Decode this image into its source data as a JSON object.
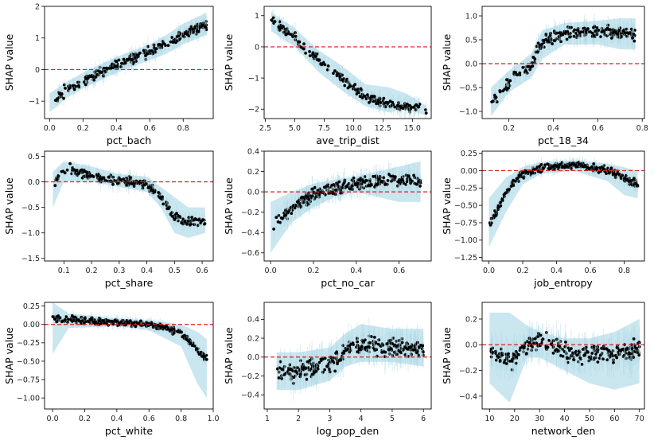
{
  "figure": {
    "ylabel_common": "SHAP value"
  },
  "chart_data": [
    {
      "type": "scatter",
      "xlabel": "pct_bach",
      "ylabel": "SHAP value",
      "xlim": [
        -0.03,
        0.98
      ],
      "ylim": [
        -1.55,
        2.0
      ],
      "xticks": [
        {
          "v": 0.0,
          "t": "0.0"
        },
        {
          "v": 0.2,
          "t": "0.2"
        },
        {
          "v": 0.4,
          "t": "0.4"
        },
        {
          "v": 0.6,
          "t": "0.6"
        },
        {
          "v": 0.8,
          "t": "0.8"
        }
      ],
      "yticks": [
        {
          "v": -1,
          "t": "−1"
        },
        {
          "v": 0,
          "t": "0"
        },
        {
          "v": 1,
          "t": "1"
        },
        {
          "v": 2,
          "t": "2"
        }
      ],
      "reference_y": 0,
      "trend": [
        [
          0.0,
          -1.05
        ],
        [
          0.1,
          -0.65
        ],
        [
          0.2,
          -0.35
        ],
        [
          0.3,
          -0.1
        ],
        [
          0.4,
          0.15
        ],
        [
          0.5,
          0.35
        ],
        [
          0.6,
          0.55
        ],
        [
          0.7,
          0.8
        ],
        [
          0.8,
          1.1
        ],
        [
          0.93,
          1.4
        ]
      ],
      "band": [
        [
          0.0,
          -1.35,
          -0.75
        ],
        [
          0.1,
          -0.9,
          -0.4
        ],
        [
          0.2,
          -0.6,
          -0.1
        ],
        [
          0.3,
          -0.35,
          0.15
        ],
        [
          0.4,
          -0.1,
          0.4
        ],
        [
          0.5,
          0.1,
          0.6
        ],
        [
          0.6,
          0.3,
          0.8
        ],
        [
          0.7,
          0.5,
          1.1
        ],
        [
          0.8,
          0.8,
          1.45
        ],
        [
          0.94,
          1.1,
          1.8
        ]
      ],
      "spread": 0.15,
      "n": 260,
      "seed": 11
    },
    {
      "type": "scatter",
      "xlabel": "ave_trip_dist",
      "ylabel": "SHAP value",
      "xlim": [
        2.4,
        16.6
      ],
      "ylim": [
        -2.3,
        1.3
      ],
      "xticks": [
        {
          "v": 2.5,
          "t": "2.5"
        },
        {
          "v": 5.0,
          "t": "5.0"
        },
        {
          "v": 7.5,
          "t": "7.5"
        },
        {
          "v": 10.0,
          "t": "10.0"
        },
        {
          "v": 12.5,
          "t": "12.5"
        },
        {
          "v": 15.0,
          "t": "15.0"
        }
      ],
      "yticks": [
        {
          "v": -2,
          "t": "−2"
        },
        {
          "v": -1,
          "t": "−1"
        },
        {
          "v": 0,
          "t": "0"
        },
        {
          "v": 1,
          "t": "1"
        }
      ],
      "reference_y": 0,
      "trend": [
        [
          3.0,
          0.8
        ],
        [
          4.0,
          0.6
        ],
        [
          5.0,
          0.3
        ],
        [
          6.0,
          -0.1
        ],
        [
          7.0,
          -0.4
        ],
        [
          8.0,
          -0.7
        ],
        [
          9.0,
          -1.0
        ],
        [
          10.0,
          -1.3
        ],
        [
          11.0,
          -1.6
        ],
        [
          12.5,
          -1.8
        ],
        [
          14.0,
          -1.9
        ],
        [
          16.2,
          -2.0
        ]
      ],
      "band": [
        [
          3.0,
          0.5,
          1.1
        ],
        [
          5.0,
          0.0,
          0.6
        ],
        [
          7.0,
          -0.8,
          -0.1
        ],
        [
          9.0,
          -1.4,
          -0.6
        ],
        [
          11.0,
          -1.9,
          -1.2
        ],
        [
          13.0,
          -2.1,
          -1.3
        ],
        [
          14.5,
          -2.0,
          -1.5
        ],
        [
          16.2,
          -2.2,
          -1.9
        ]
      ],
      "spread": 0.15,
      "n": 200,
      "seed": 23
    },
    {
      "type": "scatter",
      "xlabel": "pct_18_34",
      "ylabel": "SHAP value",
      "xlim": [
        0.08,
        0.81
      ],
      "ylim": [
        -1.15,
        1.2
      ],
      "xticks": [
        {
          "v": 0.2,
          "t": "0.2"
        },
        {
          "v": 0.4,
          "t": "0.4"
        },
        {
          "v": 0.6,
          "t": "0.6"
        },
        {
          "v": 0.8,
          "t": "0.8"
        }
      ],
      "yticks": [
        {
          "v": -1.0,
          "t": "−1.0"
        },
        {
          "v": -0.5,
          "t": "−0.5"
        },
        {
          "v": 0.0,
          "t": "0.0"
        },
        {
          "v": 0.5,
          "t": "0.5"
        },
        {
          "v": 1.0,
          "t": "1.0"
        }
      ],
      "reference_y": 0,
      "trend": [
        [
          0.12,
          -0.8
        ],
        [
          0.18,
          -0.5
        ],
        [
          0.22,
          -0.3
        ],
        [
          0.26,
          -0.15
        ],
        [
          0.3,
          -0.05
        ],
        [
          0.33,
          0.3
        ],
        [
          0.37,
          0.5
        ],
        [
          0.42,
          0.6
        ],
        [
          0.5,
          0.65
        ],
        [
          0.6,
          0.65
        ],
        [
          0.7,
          0.65
        ],
        [
          0.77,
          0.6
        ]
      ],
      "band": [
        [
          0.12,
          -1.1,
          -0.5
        ],
        [
          0.2,
          -0.6,
          -0.15
        ],
        [
          0.3,
          -0.3,
          0.2
        ],
        [
          0.35,
          0.1,
          0.7
        ],
        [
          0.45,
          0.4,
          0.85
        ],
        [
          0.6,
          0.4,
          0.9
        ],
        [
          0.7,
          0.3,
          0.95
        ],
        [
          0.77,
          0.3,
          0.95
        ]
      ],
      "spread": 0.12,
      "n": 230,
      "seed": 37
    },
    {
      "type": "scatter",
      "xlabel": "pct_share",
      "ylabel": "SHAP value",
      "xlim": [
        0.03,
        0.64
      ],
      "ylim": [
        -1.55,
        0.6
      ],
      "xticks": [
        {
          "v": 0.1,
          "t": "0.1"
        },
        {
          "v": 0.2,
          "t": "0.2"
        },
        {
          "v": 0.3,
          "t": "0.3"
        },
        {
          "v": 0.4,
          "t": "0.4"
        },
        {
          "v": 0.5,
          "t": "0.5"
        },
        {
          "v": 0.6,
          "t": "0.6"
        }
      ],
      "yticks": [
        {
          "v": -1.5,
          "t": "−1.5"
        },
        {
          "v": -1.0,
          "t": "−1.0"
        },
        {
          "v": -0.5,
          "t": "−0.5"
        },
        {
          "v": 0.0,
          "t": "0.0"
        },
        {
          "v": 0.5,
          "t": "0.5"
        }
      ],
      "reference_y": 0,
      "trend": [
        [
          0.06,
          -0.1
        ],
        [
          0.09,
          0.2
        ],
        [
          0.12,
          0.25
        ],
        [
          0.18,
          0.15
        ],
        [
          0.25,
          0.05
        ],
        [
          0.32,
          0.0
        ],
        [
          0.38,
          0.0
        ],
        [
          0.42,
          -0.15
        ],
        [
          0.46,
          -0.35
        ],
        [
          0.5,
          -0.7
        ],
        [
          0.55,
          -0.8
        ],
        [
          0.61,
          -0.8
        ]
      ],
      "band": [
        [
          0.06,
          -0.5,
          0.2
        ],
        [
          0.1,
          0.0,
          0.4
        ],
        [
          0.2,
          0.0,
          0.3
        ],
        [
          0.3,
          -0.1,
          0.15
        ],
        [
          0.4,
          -0.2,
          0.1
        ],
        [
          0.45,
          -0.5,
          -0.1
        ],
        [
          0.5,
          -1.0,
          -0.3
        ],
        [
          0.55,
          -1.1,
          -0.5
        ],
        [
          0.61,
          -1.0,
          -0.5
        ]
      ],
      "spread": 0.08,
      "n": 230,
      "seed": 41
    },
    {
      "type": "scatter",
      "xlabel": "pct_no_car",
      "ylabel": "SHAP value",
      "xlim": [
        -0.03,
        0.75
      ],
      "ylim": [
        -0.68,
        0.4
      ],
      "xticks": [
        {
          "v": 0.0,
          "t": "0.0"
        },
        {
          "v": 0.2,
          "t": "0.2"
        },
        {
          "v": 0.4,
          "t": "0.4"
        },
        {
          "v": 0.6,
          "t": "0.6"
        }
      ],
      "yticks": [
        {
          "v": -0.6,
          "t": "−0.6"
        },
        {
          "v": -0.4,
          "t": "−0.4"
        },
        {
          "v": -0.2,
          "t": "−0.2"
        },
        {
          "v": 0.0,
          "t": "0.0"
        },
        {
          "v": 0.2,
          "t": "0.2"
        },
        {
          "v": 0.4,
          "t": "0.4"
        }
      ],
      "reference_y": 0,
      "trend": [
        [
          0.0,
          -0.35
        ],
        [
          0.05,
          -0.25
        ],
        [
          0.1,
          -0.15
        ],
        [
          0.15,
          -0.08
        ],
        [
          0.2,
          -0.03
        ],
        [
          0.3,
          0.03
        ],
        [
          0.4,
          0.08
        ],
        [
          0.5,
          0.1
        ],
        [
          0.6,
          0.12
        ],
        [
          0.7,
          0.12
        ]
      ],
      "band": [
        [
          0.0,
          -0.6,
          -0.1
        ],
        [
          0.1,
          -0.3,
          0.0
        ],
        [
          0.2,
          -0.15,
          0.08
        ],
        [
          0.3,
          -0.05,
          0.12
        ],
        [
          0.4,
          0.0,
          0.15
        ],
        [
          0.5,
          -0.05,
          0.2
        ],
        [
          0.6,
          -0.1,
          0.25
        ],
        [
          0.7,
          -0.1,
          0.3
        ]
      ],
      "spread": 0.06,
      "n": 300,
      "seed": 53
    },
    {
      "type": "scatter",
      "xlabel": "job_entropy",
      "ylabel": "SHAP value",
      "xlim": [
        -0.04,
        0.92
      ],
      "ylim": [
        -1.3,
        0.28
      ],
      "xticks": [
        {
          "v": 0.0,
          "t": "0.0"
        },
        {
          "v": 0.2,
          "t": "0.2"
        },
        {
          "v": 0.4,
          "t": "0.4"
        },
        {
          "v": 0.6,
          "t": "0.6"
        },
        {
          "v": 0.8,
          "t": "0.8"
        }
      ],
      "yticks": [
        {
          "v": -1.25,
          "t": "−1.25"
        },
        {
          "v": -1.0,
          "t": "−1.00"
        },
        {
          "v": -0.75,
          "t": "−0.75"
        },
        {
          "v": -0.5,
          "t": "−0.50"
        },
        {
          "v": -0.25,
          "t": "−0.25"
        },
        {
          "v": 0.0,
          "t": "0.00"
        },
        {
          "v": 0.25,
          "t": "0.25"
        }
      ],
      "reference_y": 0,
      "trend": [
        [
          0.0,
          -0.8
        ],
        [
          0.05,
          -0.55
        ],
        [
          0.1,
          -0.35
        ],
        [
          0.15,
          -0.15
        ],
        [
          0.2,
          -0.05
        ],
        [
          0.3,
          0.03
        ],
        [
          0.4,
          0.06
        ],
        [
          0.5,
          0.08
        ],
        [
          0.6,
          0.05
        ],
        [
          0.7,
          0.0
        ],
        [
          0.8,
          -0.1
        ],
        [
          0.88,
          -0.2
        ]
      ],
      "band": [
        [
          0.0,
          -1.1,
          -0.4
        ],
        [
          0.1,
          -0.6,
          -0.1
        ],
        [
          0.2,
          -0.2,
          0.05
        ],
        [
          0.3,
          -0.05,
          0.12
        ],
        [
          0.5,
          0.0,
          0.15
        ],
        [
          0.7,
          -0.15,
          0.1
        ],
        [
          0.8,
          -0.35,
          0.05
        ],
        [
          0.88,
          -0.4,
          0.0
        ]
      ],
      "spread": 0.05,
      "n": 300,
      "seed": 61
    },
    {
      "type": "scatter",
      "xlabel": "pct_white",
      "ylabel": "SHAP value",
      "xlim": [
        -0.05,
        1.0
      ],
      "ylim": [
        -1.15,
        0.3
      ],
      "xticks": [
        {
          "v": 0.0,
          "t": "0.0"
        },
        {
          "v": 0.2,
          "t": "0.2"
        },
        {
          "v": 0.4,
          "t": "0.4"
        },
        {
          "v": 0.6,
          "t": "0.6"
        },
        {
          "v": 0.8,
          "t": "0.8"
        },
        {
          "v": 1.0,
          "t": "1.0"
        }
      ],
      "yticks": [
        {
          "v": -1.0,
          "t": "−1.00"
        },
        {
          "v": -0.75,
          "t": "−0.75"
        },
        {
          "v": -0.5,
          "t": "−0.50"
        },
        {
          "v": -0.25,
          "t": "−0.25"
        },
        {
          "v": 0.0,
          "t": "0.00"
        },
        {
          "v": 0.25,
          "t": "0.25"
        }
      ],
      "reference_y": 0,
      "trend": [
        [
          0.0,
          0.1
        ],
        [
          0.05,
          0.08
        ],
        [
          0.2,
          0.05
        ],
        [
          0.4,
          0.03
        ],
        [
          0.6,
          0.0
        ],
        [
          0.7,
          -0.05
        ],
        [
          0.8,
          -0.12
        ],
        [
          0.86,
          -0.25
        ],
        [
          0.9,
          -0.35
        ],
        [
          0.95,
          -0.45
        ]
      ],
      "band": [
        [
          0.0,
          -0.4,
          0.3
        ],
        [
          0.1,
          -0.05,
          0.15
        ],
        [
          0.4,
          -0.02,
          0.08
        ],
        [
          0.6,
          -0.08,
          0.06
        ],
        [
          0.8,
          -0.3,
          0.0
        ],
        [
          0.9,
          -0.8,
          -0.1
        ],
        [
          0.96,
          -1.0,
          -0.2
        ]
      ],
      "spread": 0.04,
      "n": 320,
      "seed": 71
    },
    {
      "type": "scatter",
      "xlabel": "log_pop_den",
      "ylabel": "SHAP value",
      "xlim": [
        0.9,
        6.25
      ],
      "ylim": [
        -0.55,
        0.58
      ],
      "xticks": [
        {
          "v": 1,
          "t": "1"
        },
        {
          "v": 2,
          "t": "2"
        },
        {
          "v": 3,
          "t": "3"
        },
        {
          "v": 4,
          "t": "4"
        },
        {
          "v": 5,
          "t": "5"
        },
        {
          "v": 6,
          "t": "6"
        }
      ],
      "yticks": [
        {
          "v": -0.4,
          "t": "−0.4"
        },
        {
          "v": -0.2,
          "t": "−0.2"
        },
        {
          "v": 0.0,
          "t": "0.0"
        },
        {
          "v": 0.2,
          "t": "0.2"
        },
        {
          "v": 0.4,
          "t": "0.4"
        }
      ],
      "reference_y": 0,
      "trend": [
        [
          1.3,
          -0.15
        ],
        [
          2.0,
          -0.15
        ],
        [
          2.5,
          -0.1
        ],
        [
          3.0,
          -0.07
        ],
        [
          3.3,
          -0.02
        ],
        [
          3.6,
          0.1
        ],
        [
          4.0,
          0.12
        ],
        [
          4.5,
          0.12
        ],
        [
          5.0,
          0.1
        ],
        [
          6.0,
          0.1
        ]
      ],
      "band": [
        [
          1.3,
          -0.35,
          0.05
        ],
        [
          2.0,
          -0.35,
          0.05
        ],
        [
          3.0,
          -0.25,
          0.1
        ],
        [
          3.5,
          -0.1,
          0.25
        ],
        [
          4.0,
          -0.05,
          0.35
        ],
        [
          5.0,
          -0.05,
          0.3
        ],
        [
          6.0,
          -0.1,
          0.3
        ]
      ],
      "spread": 0.09,
      "n": 300,
      "seed": 83
    },
    {
      "type": "scatter",
      "xlabel": "network_den",
      "ylabel": "SHAP value",
      "xlim": [
        7.0,
        72.0
      ],
      "ylim": [
        -0.5,
        0.33
      ],
      "xticks": [
        {
          "v": 10,
          "t": "10"
        },
        {
          "v": 20,
          "t": "20"
        },
        {
          "v": 30,
          "t": "30"
        },
        {
          "v": 40,
          "t": "40"
        },
        {
          "v": 50,
          "t": "50"
        },
        {
          "v": 60,
          "t": "60"
        },
        {
          "v": 70,
          "t": "70"
        }
      ],
      "yticks": [
        {
          "v": -0.4,
          "t": "−0.4"
        },
        {
          "v": -0.2,
          "t": "−0.2"
        },
        {
          "v": 0.0,
          "t": "0.0"
        },
        {
          "v": 0.2,
          "t": "0.2"
        }
      ],
      "reference_y": 0,
      "trend": [
        [
          10,
          -0.05
        ],
        [
          15,
          -0.1
        ],
        [
          20,
          -0.1
        ],
        [
          24,
          -0.02
        ],
        [
          28,
          0.03
        ],
        [
          32,
          0.0
        ],
        [
          36,
          -0.03
        ],
        [
          40,
          -0.06
        ],
        [
          45,
          -0.08
        ],
        [
          55,
          -0.08
        ],
        [
          70,
          -0.03
        ]
      ],
      "band": [
        [
          10,
          -0.3,
          0.25
        ],
        [
          18,
          -0.45,
          0.25
        ],
        [
          25,
          -0.1,
          0.15
        ],
        [
          30,
          -0.1,
          0.1
        ],
        [
          40,
          -0.2,
          0.05
        ],
        [
          50,
          -0.3,
          0.05
        ],
        [
          60,
          -0.35,
          0.1
        ],
        [
          70,
          -0.3,
          0.2
        ]
      ],
      "spread": 0.07,
      "n": 260,
      "seed": 97
    }
  ]
}
